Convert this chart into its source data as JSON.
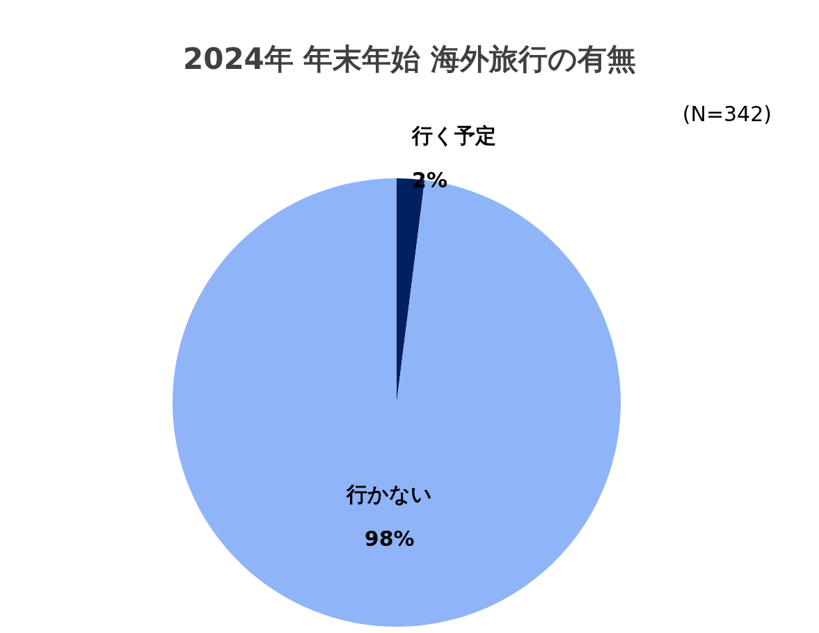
{
  "chart_data": {
    "type": "pie",
    "title": "2024年 年末年始 海外旅行の有無",
    "annotations": [
      "(N=342)"
    ],
    "categories": [
      "行く予定",
      "行かない"
    ],
    "values": [
      2,
      98
    ],
    "colors": [
      "#002060",
      "#8fb4f7"
    ],
    "value_labels": [
      "2%",
      "98%"
    ],
    "legend": false
  }
}
